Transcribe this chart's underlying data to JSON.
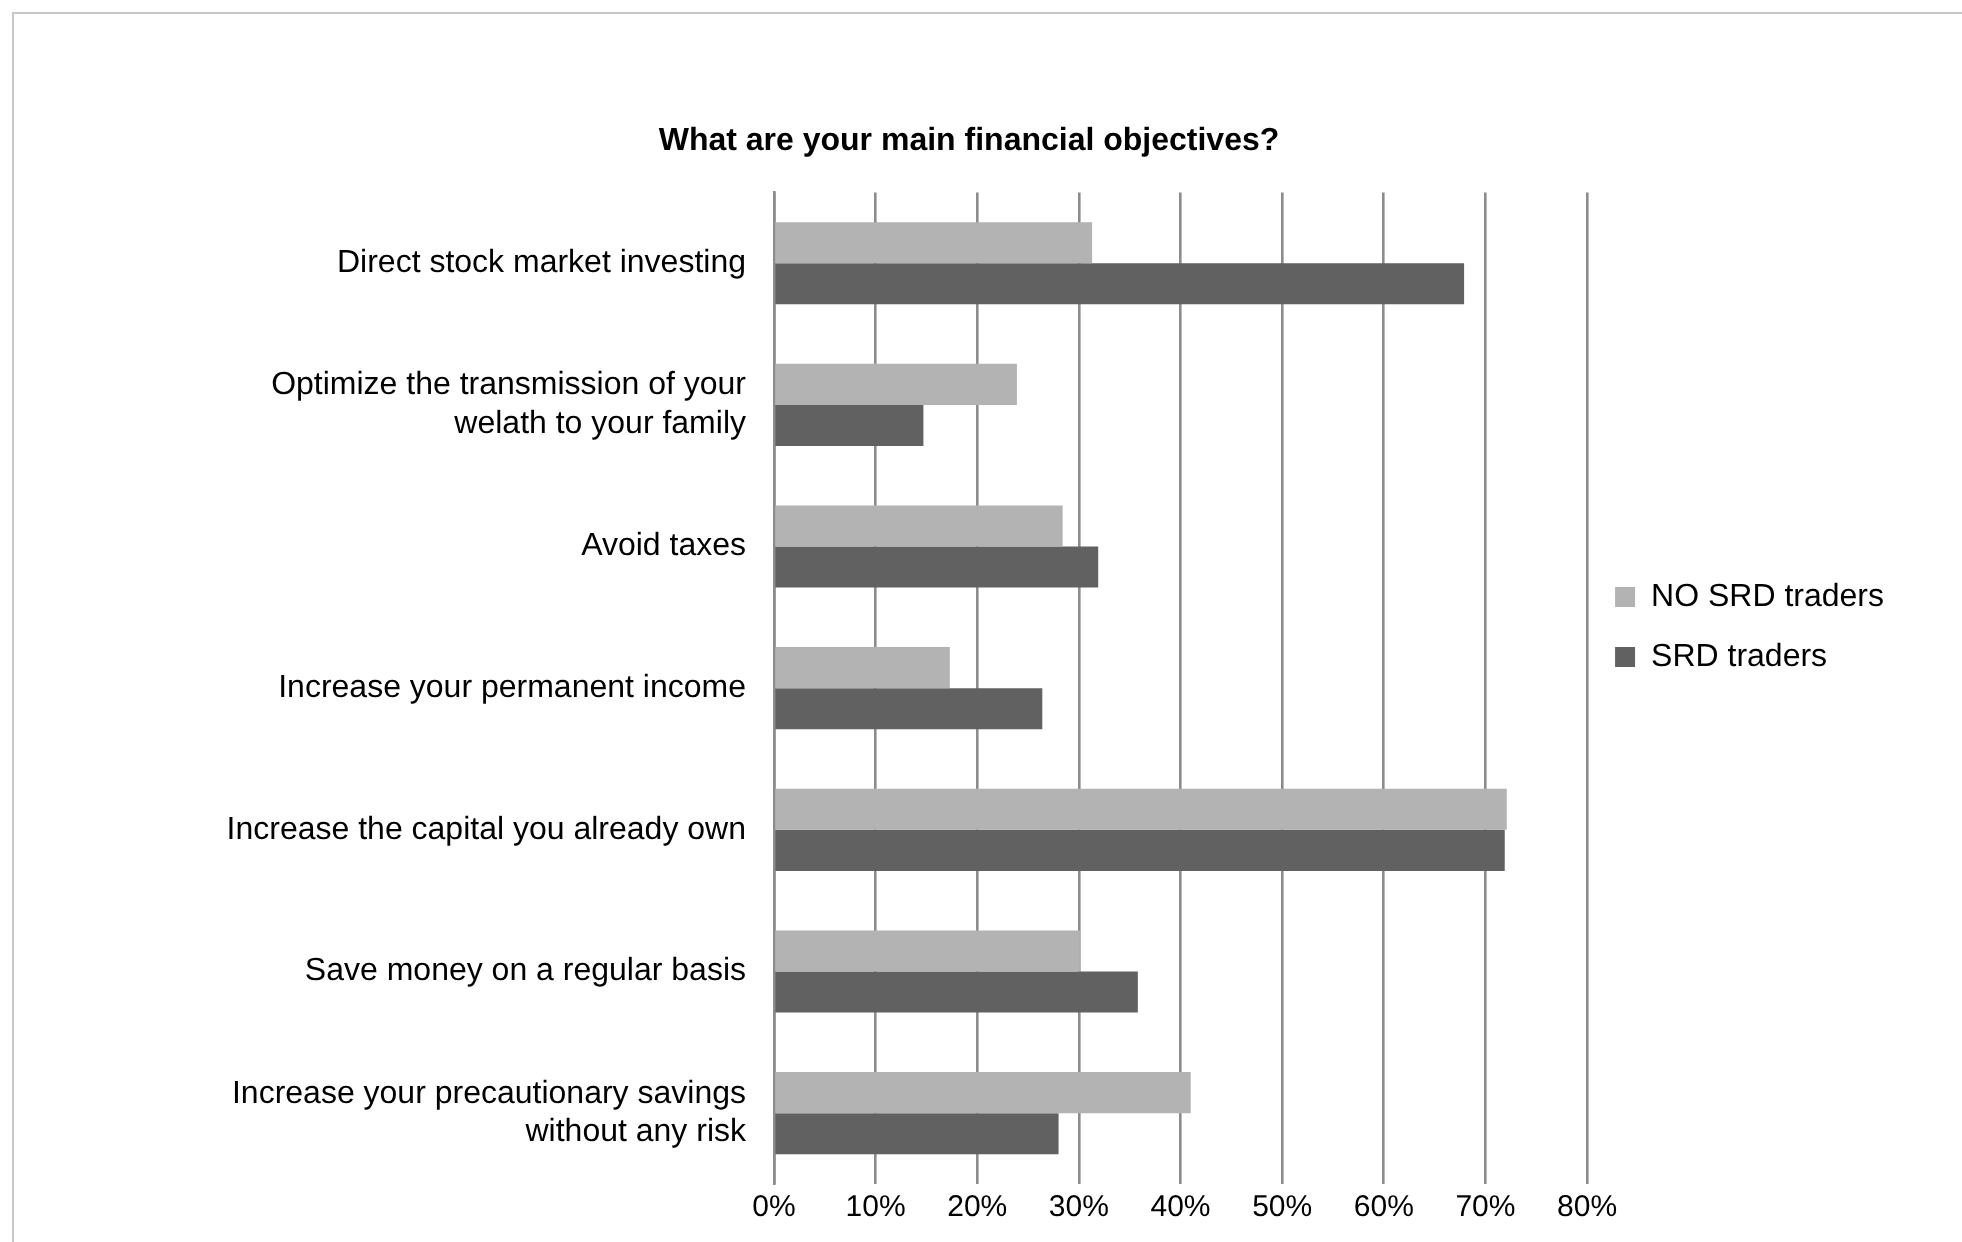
{
  "chart_data": {
    "type": "bar",
    "orientation": "horizontal",
    "title": "What are your main financial objectives?",
    "categories": [
      "Direct stock market investing",
      "Optimize the transmission of your welath to your family",
      "Avoid taxes",
      "Increase your permanent income",
      "Increase the capital you already own",
      "Save money on a regular basis",
      "Increase your precautionary savings without any risk"
    ],
    "series": [
      {
        "name": "NO SRD traders",
        "color": "#b3b3b3",
        "values": [
          31.3,
          23.9,
          28.4,
          17.3,
          72.1,
          30.1,
          41.0
        ]
      },
      {
        "name": "SRD traders",
        "color": "#616161",
        "values": [
          67.9,
          14.7,
          31.9,
          26.4,
          71.9,
          35.8,
          28.0
        ]
      }
    ],
    "xlim": [
      0,
      80
    ],
    "xticks": [
      {
        "value": 0,
        "label": "0%"
      },
      {
        "value": 10,
        "label": "10%"
      },
      {
        "value": 20,
        "label": "20%"
      },
      {
        "value": 30,
        "label": "30%"
      },
      {
        "value": 40,
        "label": "40%"
      },
      {
        "value": 50,
        "label": "50%"
      },
      {
        "value": 60,
        "label": "60%"
      },
      {
        "value": 70,
        "label": "70%"
      },
      {
        "value": 80,
        "label": "80%"
      }
    ],
    "grid": "x",
    "legend": "right"
  }
}
